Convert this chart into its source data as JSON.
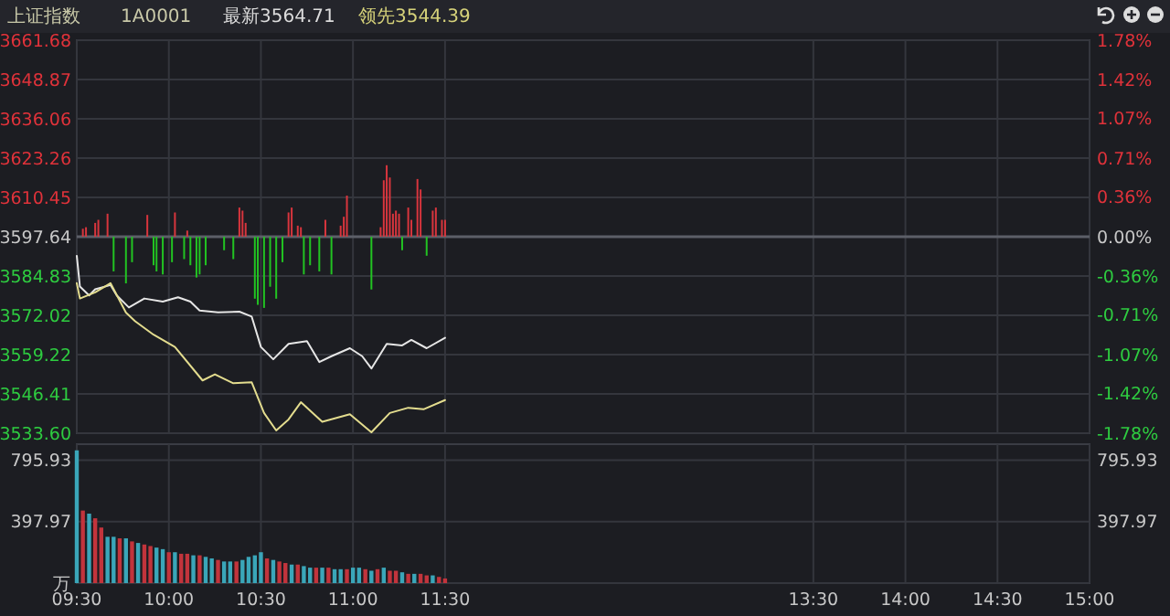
{
  "chart_data": [
    {
      "type": "line",
      "annotations": [
        "上证指数",
        "1A0001",
        "最新3564.71",
        "领先3544.39"
      ],
      "xlim": [
        9.5,
        15
      ],
      "xticks": [
        {
          "value": 9.5,
          "label": null
        },
        {
          "value": 10,
          "label": null
        },
        {
          "value": 10.5,
          "label": null
        },
        {
          "value": 11,
          "label": null
        },
        {
          "value": 11.5,
          "label": null
        },
        {
          "value": 13.5,
          "label": null
        },
        {
          "value": 14,
          "label": null
        },
        {
          "value": 14.5,
          "label": null
        },
        {
          "value": 15,
          "label": null
        }
      ],
      "ylim": [
        3533.6,
        3661.68
      ],
      "yticks": [
        {
          "value": 3533.6,
          "label": "3533.60"
        },
        3546.41,
        3559.22,
        3572.02,
        3584.83,
        3597.64,
        3610.45,
        3623.26,
        3636.06,
        3648.87,
        3661.68
      ],
      "y2lim": [
        -1.78,
        1.78
      ],
      "y2ticks": [
        {
          "value": -1.78,
          "label": "-1.78%"
        },
        {
          "value": -1.42,
          "label": "-1.42%"
        },
        {
          "value": -1.07,
          "label": "-1.07%"
        },
        {
          "value": -0.71,
          "label": "-0.71%"
        },
        {
          "value": -0.36,
          "label": "-0.36%"
        },
        {
          "value": 0,
          "label": "0.00%"
        },
        {
          "value": 0.36,
          "label": "0.36%"
        },
        {
          "value": 0.71,
          "label": "0.71%"
        },
        {
          "value": 1.07,
          "label": "1.07%"
        },
        {
          "value": 1.42,
          "label": "1.42%"
        },
        {
          "value": 1.78,
          "label": "1.78%"
        }
      ],
      "grid": true,
      "tick_labels": "y",
      "ref_lines": [
        {
          "axis": "y",
          "value": 3597.64,
          "color": "#5c5f68"
        }
      ],
      "series": [
        {
          "type": "bar",
          "x": [
            9.533,
            9.55,
            9.6,
            9.617,
            9.667,
            9.7,
            9.767,
            9.8,
            9.883,
            9.917,
            9.933,
            9.967,
            10.017,
            10.033,
            10.083,
            10.1,
            10.117,
            10.15,
            10.167,
            10.2,
            10.3,
            10.35,
            10.383,
            10.4,
            10.417,
            10.467,
            10.483,
            10.517,
            10.55,
            10.583,
            10.617,
            10.65,
            10.667,
            10.7,
            10.717,
            10.733,
            10.767,
            10.817,
            10.85,
            10.883,
            10.933,
            10.95,
            10.967,
            11.1,
            11.15,
            11.167,
            11.183,
            11.2,
            11.217,
            11.233,
            11.25,
            11.267,
            11.3,
            11.317,
            11.35,
            11.367,
            11.4,
            11.433,
            11.45,
            11.483,
            11.5
          ],
          "base": [
            3597.64,
            3597.64,
            3597.64,
            3597.64,
            3597.64,
            3597.64,
            3597.64,
            3597.64,
            3597.64,
            3597.64,
            3597.64,
            3597.64,
            3597.64,
            3597.64,
            3597.64,
            3597.64,
            3597.64,
            3597.64,
            3597.64,
            3597.64,
            3597.64,
            3597.64,
            3597.64,
            3597.64,
            3597.64,
            3597.64,
            3597.64,
            3597.64,
            3597.64,
            3597.64,
            3597.64,
            3597.64,
            3597.64,
            3597.64,
            3597.64,
            3597.64,
            3597.64,
            3597.64,
            3597.64,
            3597.64,
            3597.64,
            3597.64,
            3597.64,
            3597.64,
            3597.64,
            3597.64,
            3597.64,
            3597.64,
            3597.64,
            3597.64,
            3597.64,
            3597.64,
            3597.64,
            3597.64,
            3597.64,
            3597.64,
            3597.64,
            3597.64,
            3597.64,
            3597.64,
            3597.64
          ],
          "values": [
            2.6,
            3.1,
            4.5,
            5.5,
            7.5,
            -11.3,
            -15.2,
            -8.3,
            7.1,
            -9.3,
            -11.3,
            -12.3,
            -8.3,
            7.9,
            -7.3,
            2.0,
            -9.3,
            -13.3,
            -12.3,
            -9.3,
            -4.4,
            -7.3,
            9.5,
            8.5,
            4.5,
            -20.2,
            -22.2,
            -23.2,
            -16.3,
            -20.2,
            -8.3,
            7.9,
            9.5,
            3.6,
            3.1,
            -12.3,
            -9.3,
            -11.3,
            5.5,
            -12.3,
            3.6,
            6.5,
            13.4,
            -17.2,
            3.1,
            18.4,
            23.3,
            19.3,
            7.5,
            8.5,
            7.5,
            -4.4,
            9.5,
            5.5,
            18.8,
            15.4,
            -6.2,
            8.5,
            9.5,
            5.5,
            5.5
          ],
          "colors": [
            "#d8353d",
            "#d8353d",
            "#d8353d",
            "#d8353d",
            "#d8353d",
            "#22c322",
            "#22c322",
            "#22c322",
            "#d8353d",
            "#22c322",
            "#22c322",
            "#22c322",
            "#22c322",
            "#d8353d",
            "#22c322",
            "#d8353d",
            "#22c322",
            "#22c322",
            "#22c322",
            "#22c322",
            "#22c322",
            "#22c322",
            "#d8353d",
            "#d8353d",
            "#d8353d",
            "#22c322",
            "#22c322",
            "#22c322",
            "#22c322",
            "#22c322",
            "#22c322",
            "#d8353d",
            "#d8353d",
            "#d8353d",
            "#d8353d",
            "#22c322",
            "#22c322",
            "#22c322",
            "#d8353d",
            "#22c322",
            "#d8353d",
            "#d8353d",
            "#d8353d",
            "#22c322",
            "#d8353d",
            "#d8353d",
            "#d8353d",
            "#d8353d",
            "#d8353d",
            "#d8353d",
            "#d8353d",
            "#22c322",
            "#d8353d",
            "#d8353d",
            "#d8353d",
            "#d8353d",
            "#22c322",
            "#d8353d",
            "#d8353d",
            "#d8353d",
            "#d8353d"
          ]
        },
        {
          "color": "#e6e6e6",
          "x": [
            9.5,
            9.517,
            9.567,
            9.6,
            9.683,
            9.717,
            9.783,
            9.867,
            9.967,
            10.05,
            10.117,
            10.167,
            10.267,
            10.383,
            10.45,
            10.5,
            10.567,
            10.65,
            10.75,
            10.817,
            10.883,
            10.983,
            11.05,
            11.1,
            11.183,
            11.267,
            11.317,
            11.4,
            11.5
          ],
          "values": [
            3591.4,
            3581.4,
            3578.5,
            3580.5,
            3581.9,
            3578.5,
            3574.6,
            3577.5,
            3576.5,
            3577.9,
            3576.5,
            3573.6,
            3573.0,
            3573.2,
            3571.6,
            3561.7,
            3557.7,
            3562.7,
            3563.6,
            3556.8,
            3558.7,
            3561.3,
            3558.7,
            3554.7,
            3562.7,
            3562.2,
            3564.0,
            3561.3,
            3564.7
          ]
        },
        {
          "color": "#e3dc8e",
          "x": [
            9.5,
            9.517,
            9.6,
            9.683,
            9.767,
            9.817,
            9.917,
            10.033,
            10.183,
            10.25,
            10.35,
            10.45,
            10.517,
            10.583,
            10.65,
            10.717,
            10.833,
            10.983,
            11.1,
            11.2,
            11.3,
            11.383,
            11.5
          ],
          "values": [
            3582.5,
            3577.5,
            3579.5,
            3582.5,
            3572.9,
            3570.1,
            3565.7,
            3561.7,
            3550.8,
            3552.8,
            3549.9,
            3550.2,
            3540.2,
            3534.5,
            3538.1,
            3543.7,
            3537.3,
            3539.8,
            3533.9,
            3540.2,
            3541.9,
            3541.4,
            3544.4
          ]
        }
      ]
    },
    {
      "type": "bar",
      "x": [
        9.5,
        9.533,
        9.567,
        9.6,
        9.633,
        9.667,
        9.7,
        9.733,
        9.767,
        9.8,
        9.833,
        9.867,
        9.9,
        9.933,
        9.967,
        10,
        10.033,
        10.067,
        10.1,
        10.133,
        10.167,
        10.2,
        10.233,
        10.267,
        10.3,
        10.333,
        10.367,
        10.4,
        10.433,
        10.467,
        10.5,
        10.533,
        10.567,
        10.6,
        10.633,
        10.667,
        10.7,
        10.733,
        10.767,
        10.8,
        10.833,
        10.867,
        10.9,
        10.933,
        10.967,
        11,
        11.033,
        11.067,
        11.1,
        11.133,
        11.167,
        11.2,
        11.233,
        11.267,
        11.3,
        11.333,
        11.367,
        11.4,
        11.433,
        11.467,
        11.5
      ],
      "values": [
        860,
        470,
        450,
        420,
        360,
        300,
        300,
        290,
        290,
        270,
        260,
        250,
        240,
        230,
        220,
        200,
        200,
        190,
        190,
        180,
        180,
        170,
        160,
        150,
        140,
        140,
        140,
        150,
        170,
        180,
        200,
        160,
        150,
        140,
        130,
        120,
        120,
        110,
        100,
        100,
        100,
        100,
        90,
        90,
        90,
        100,
        100,
        90,
        80,
        90,
        100,
        80,
        80,
        70,
        60,
        60,
        60,
        50,
        50,
        40,
        30
      ],
      "colors": [
        "#3aa6b9",
        "#c2343c",
        "#3aa6b9",
        "#c2343c",
        "#c2343c",
        "#3aa6b9",
        "#3aa6b9",
        "#c2343c",
        "#3aa6b9",
        "#c2343c",
        "#3aa6b9",
        "#c2343c",
        "#c2343c",
        "#3aa6b9",
        "#3aa6b9",
        "#c2343c",
        "#3aa6b9",
        "#c2343c",
        "#c2343c",
        "#3aa6b9",
        "#c2343c",
        "#3aa6b9",
        "#3aa6b9",
        "#c2343c",
        "#3aa6b9",
        "#3aa6b9",
        "#c2343c",
        "#3aa6b9",
        "#3aa6b9",
        "#3aa6b9",
        "#3aa6b9",
        "#c2343c",
        "#3aa6b9",
        "#c2343c",
        "#c2343c",
        "#3aa6b9",
        "#c2343c",
        "#3aa6b9",
        "#3aa6b9",
        "#c2343c",
        "#3aa6b9",
        "#c2343c",
        "#3aa6b9",
        "#3aa6b9",
        "#c2343c",
        "#3aa6b9",
        "#3aa6b9",
        "#c2343c",
        "#3aa6b9",
        "#c2343c",
        "#3aa6b9",
        "#c2343c",
        "#c2343c",
        "#3aa6b9",
        "#c2343c",
        "#3aa6b9",
        "#c2343c",
        "#c2343c",
        "#3aa6b9",
        "#c2343c",
        "#c2343c"
      ],
      "xlim": [
        9.5,
        15
      ],
      "xticks": [
        {
          "value": 9.5,
          "label": "09:30"
        },
        {
          "value": 10,
          "label": "10:00"
        },
        {
          "value": 10.5,
          "label": "10:30"
        },
        {
          "value": 11,
          "label": "11:00"
        },
        {
          "value": 11.5,
          "label": "11:30"
        },
        {
          "value": 13.5,
          "label": "13:30"
        },
        {
          "value": 14,
          "label": "14:00"
        },
        {
          "value": 14.5,
          "label": "14:30"
        },
        {
          "value": 15,
          "label": "15:00"
        }
      ],
      "ylim": [
        0,
        900
      ],
      "yticks": [
        {
          "value": 0,
          "label": "万"
        },
        397.97,
        795.93
      ],
      "y2lim": [
        0,
        900
      ],
      "y2ticks": [
        397.97,
        795.93
      ],
      "grid": true
    }
  ]
}
